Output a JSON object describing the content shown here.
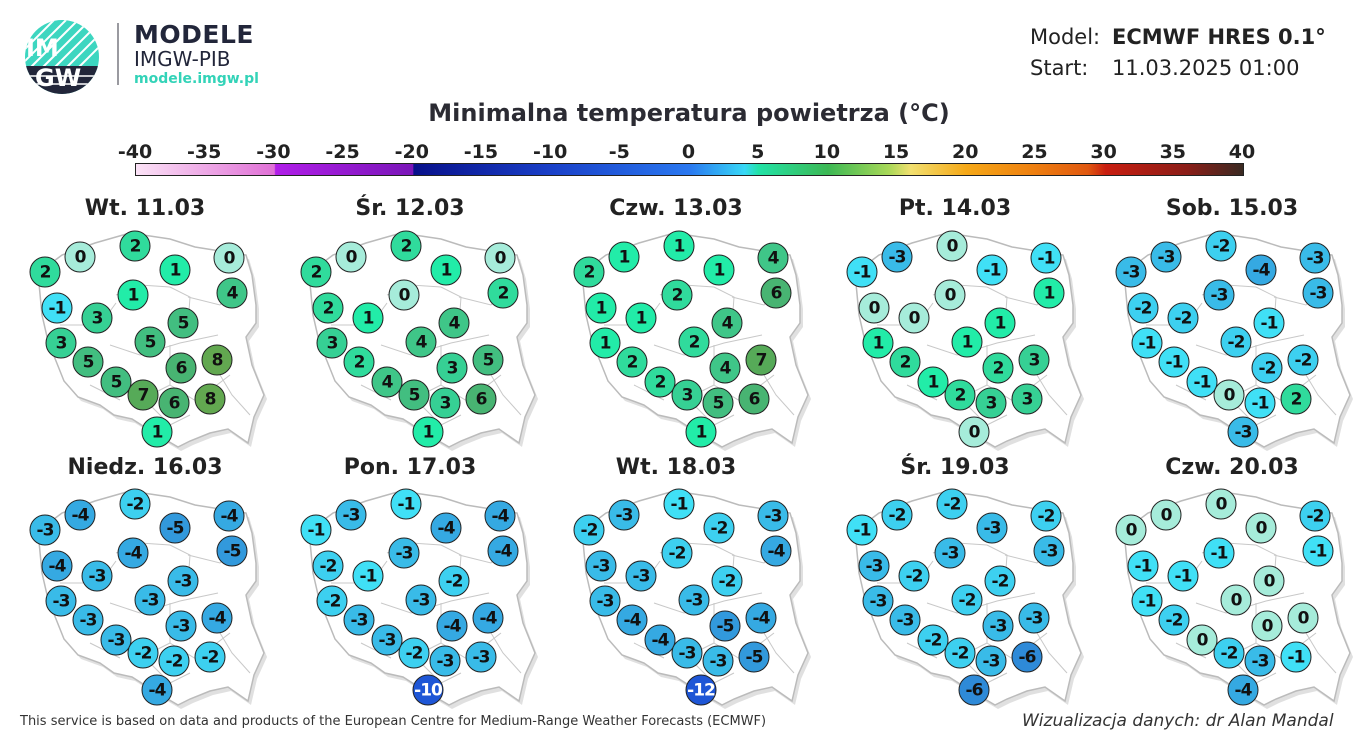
{
  "brand": {
    "logo_text_top": "IM",
    "logo_text_bottom": "GW",
    "title": "MODELE",
    "subtitle": "IMGW-PIB",
    "url": "modele.imgw.pl",
    "accent": "#33d3b8"
  },
  "meta": {
    "model_label": "Model:",
    "model_value": "ECMWF HRES 0.1°",
    "start_label": "Start:",
    "start_value": "11.03.2025 01:00"
  },
  "title": "Minimalna temperatura powietrza (°C)",
  "colorbar": {
    "ticks": [
      "-40",
      "-35",
      "-30",
      "-25",
      "-20",
      "-15",
      "-10",
      "-5",
      "0",
      "5",
      "10",
      "15",
      "20",
      "25",
      "30",
      "35",
      "40"
    ],
    "range": [
      -40,
      40
    ]
  },
  "days": [
    {
      "label": "Wt. 11.03",
      "values": [
        0,
        2,
        2,
        1,
        0,
        1,
        4,
        -1,
        3,
        5,
        3,
        5,
        6,
        8,
        5,
        5,
        7,
        6,
        8,
        1
      ]
    },
    {
      "label": "Śr. 12.03",
      "values": [
        0,
        2,
        2,
        1,
        0,
        0,
        2,
        2,
        1,
        4,
        3,
        4,
        3,
        5,
        2,
        4,
        5,
        3,
        6,
        1
      ]
    },
    {
      "label": "Czw. 13.03",
      "values": [
        1,
        1,
        2,
        1,
        4,
        2,
        6,
        1,
        1,
        4,
        1,
        2,
        4,
        7,
        2,
        2,
        3,
        5,
        6,
        1
      ]
    },
    {
      "label": "Pt. 14.03",
      "values": [
        -3,
        0,
        -1,
        -1,
        -1,
        0,
        1,
        0,
        0,
        1,
        1,
        1,
        2,
        3,
        2,
        1,
        2,
        3,
        3,
        0
      ]
    },
    {
      "label": "Sob. 15.03",
      "values": [
        -3,
        -2,
        -3,
        -4,
        -3,
        -3,
        -3,
        -2,
        -2,
        -1,
        -1,
        -2,
        -2,
        -2,
        -1,
        -1,
        0,
        -1,
        2,
        -3
      ]
    },
    {
      "label": "Niedz. 16.03",
      "values": [
        -4,
        -2,
        -3,
        -5,
        -4,
        -4,
        -5,
        -4,
        -3,
        -3,
        -3,
        -3,
        -3,
        -4,
        -3,
        -3,
        -2,
        -2,
        -2,
        -4
      ]
    },
    {
      "label": "Pon. 17.03",
      "values": [
        -3,
        -1,
        -1,
        -4,
        -4,
        -3,
        -4,
        -2,
        -1,
        -2,
        -2,
        -3,
        -4,
        -4,
        -3,
        -3,
        -2,
        -3,
        -3,
        -10
      ]
    },
    {
      "label": "Wt. 18.03",
      "values": [
        -3,
        -1,
        -2,
        -2,
        -3,
        -2,
        -4,
        -3,
        -3,
        -2,
        -3,
        -3,
        -5,
        -4,
        -4,
        -4,
        -3,
        -3,
        -5,
        -12
      ]
    },
    {
      "label": "Śr. 19.03",
      "values": [
        -2,
        -2,
        -1,
        -3,
        -2,
        -3,
        -3,
        -3,
        -2,
        -2,
        -3,
        -2,
        -3,
        -3,
        -3,
        -2,
        -2,
        -3,
        -6,
        -6
      ]
    },
    {
      "label": "Czw. 20.03",
      "values": [
        0,
        0,
        0,
        0,
        -2,
        -1,
        -1,
        -1,
        -1,
        0,
        -1,
        0,
        0,
        0,
        -2,
        0,
        -2,
        -3,
        -1,
        -4
      ]
    }
  ],
  "footer": {
    "left": "This service is based on data and products of the European Centre for Medium-Range Weather Forecasts (ECMWF)",
    "right": "Wizualizacja danych: dr Alan Mandal"
  }
}
